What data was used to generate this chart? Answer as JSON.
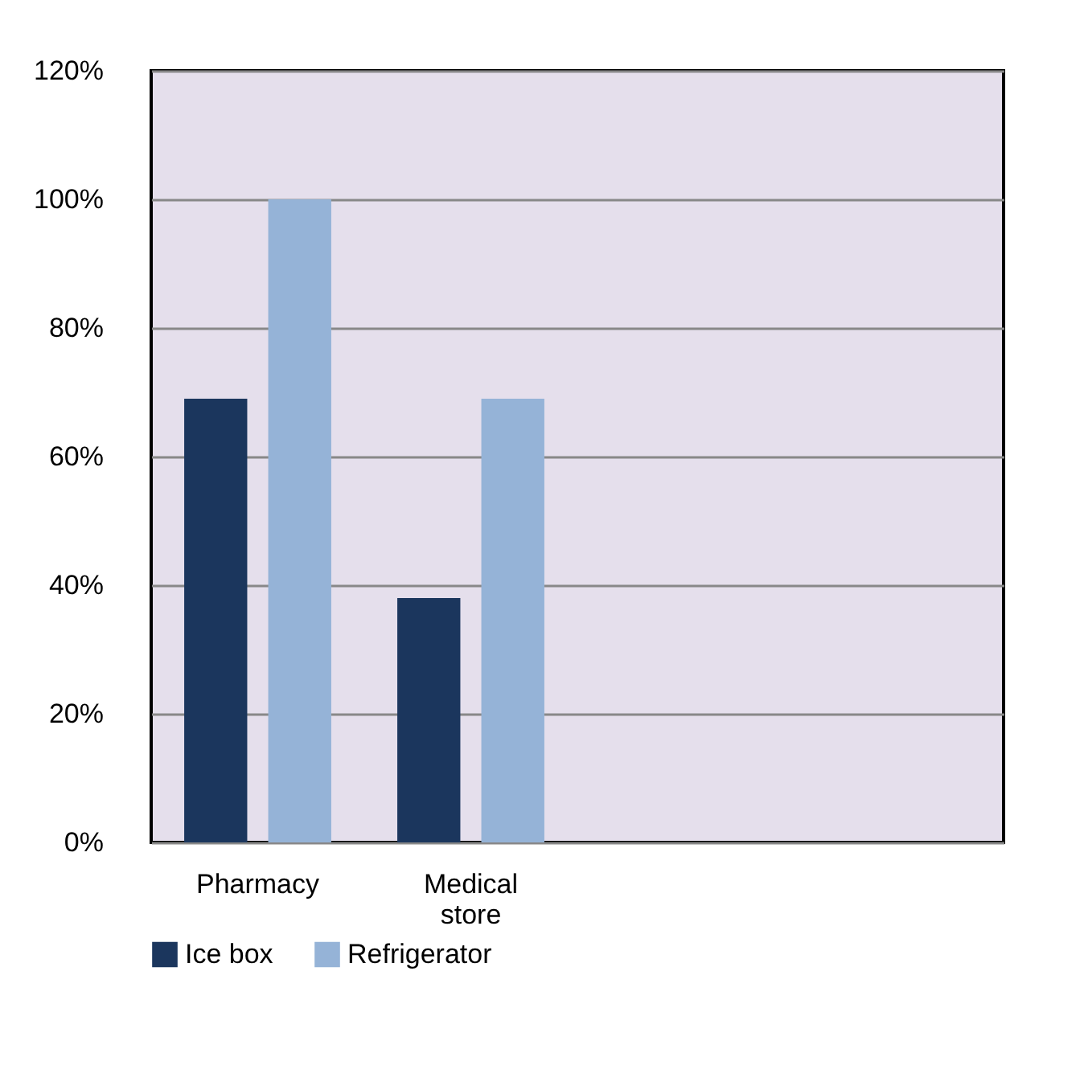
{
  "chart_data": {
    "type": "bar",
    "categories": [
      "Pharmacy",
      "Medical store",
      null,
      null
    ],
    "series": [
      {
        "name": "Ice box",
        "color": "#1b365d",
        "values": [
          69,
          38,
          null,
          null
        ]
      },
      {
        "name": "Refrigerator",
        "color": "#95b3d7",
        "values": [
          100,
          69,
          null,
          null
        ]
      }
    ],
    "ylim": [
      0,
      120
    ],
    "yticks": [
      {
        "value": 0,
        "label": "0%"
      },
      {
        "value": 20,
        "label": "20%"
      },
      {
        "value": 40,
        "label": "40%"
      },
      {
        "value": 60,
        "label": "60%"
      },
      {
        "value": 80,
        "label": "80%"
      },
      {
        "value": 100,
        "label": "100%"
      },
      {
        "value": 120,
        "label": "120%"
      }
    ],
    "grid": "y",
    "legend": "bottom"
  }
}
